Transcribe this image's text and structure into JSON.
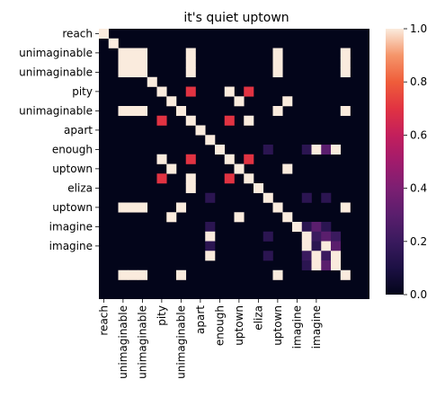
{
  "chart_data": {
    "type": "heatmap",
    "title": "it's quiet uptown",
    "xlabel": "",
    "ylabel": "",
    "tokens": [
      "reach",
      "unimaginable",
      "unimaginable",
      "unimaginable",
      "unimaginable",
      "unimaginable",
      "pity",
      "pity",
      "unimaginable",
      "unimaginable",
      "unimaginable",
      "apart",
      "apart",
      "enough",
      "enough",
      "uptown",
      "uptown",
      "uptown",
      "eliza",
      "eliza",
      "uptown",
      "uptown",
      "imagine",
      "imagine",
      "imagine",
      "imagine",
      "imagine",
      "imagine"
    ],
    "y_tick_labels": [
      "reach",
      "unimaginable",
      "unimaginable",
      "pity",
      "unimaginable",
      "apart",
      "enough",
      "uptown",
      "eliza",
      "uptown",
      "imagine",
      "imagine"
    ],
    "x_tick_labels": [
      "reach",
      "unimaginable",
      "unimaginable",
      "pity",
      "unimaginable",
      "apart",
      "enough",
      "uptown",
      "eliza",
      "uptown",
      "imagine",
      "imagine"
    ],
    "cells": [
      [
        0,
        0,
        1.0
      ],
      [
        1,
        1,
        1.0
      ],
      [
        2,
        2,
        1.0
      ],
      [
        2,
        3,
        1.0
      ],
      [
        2,
        4,
        1.0
      ],
      [
        2,
        9,
        1.0
      ],
      [
        2,
        18,
        1.0
      ],
      [
        2,
        25,
        1.0
      ],
      [
        3,
        2,
        1.0
      ],
      [
        3,
        3,
        1.0
      ],
      [
        3,
        4,
        1.0
      ],
      [
        3,
        9,
        1.0
      ],
      [
        3,
        18,
        1.0
      ],
      [
        3,
        25,
        1.0
      ],
      [
        4,
        2,
        1.0
      ],
      [
        4,
        3,
        1.0
      ],
      [
        4,
        4,
        1.0
      ],
      [
        4,
        9,
        1.0
      ],
      [
        4,
        18,
        1.0
      ],
      [
        4,
        25,
        1.0
      ],
      [
        5,
        5,
        1.0
      ],
      [
        6,
        6,
        1.0
      ],
      [
        6,
        9,
        0.7
      ],
      [
        6,
        13,
        1.0
      ],
      [
        6,
        15,
        0.7
      ],
      [
        7,
        7,
        1.0
      ],
      [
        7,
        14,
        1.0
      ],
      [
        7,
        19,
        1.0
      ],
      [
        8,
        2,
        1.0
      ],
      [
        8,
        3,
        1.0
      ],
      [
        8,
        4,
        1.0
      ],
      [
        8,
        8,
        1.0
      ],
      [
        8,
        18,
        1.0
      ],
      [
        8,
        25,
        1.0
      ],
      [
        9,
        6,
        0.7
      ],
      [
        9,
        9,
        1.0
      ],
      [
        9,
        13,
        0.7
      ],
      [
        9,
        15,
        1.0
      ],
      [
        10,
        10,
        1.0
      ],
      [
        11,
        11,
        1.0
      ],
      [
        12,
        12,
        1.0
      ],
      [
        12,
        17,
        0.15
      ],
      [
        12,
        21,
        0.15
      ],
      [
        12,
        22,
        1.0
      ],
      [
        12,
        23,
        0.3
      ],
      [
        12,
        24,
        1.0
      ],
      [
        13,
        6,
        1.0
      ],
      [
        13,
        9,
        0.7
      ],
      [
        13,
        13,
        1.0
      ],
      [
        13,
        15,
        0.7
      ],
      [
        14,
        7,
        1.0
      ],
      [
        14,
        14,
        1.0
      ],
      [
        14,
        19,
        1.0
      ],
      [
        15,
        6,
        0.7
      ],
      [
        15,
        9,
        1.0
      ],
      [
        15,
        13,
        0.7
      ],
      [
        15,
        15,
        1.0
      ],
      [
        16,
        9,
        1.0
      ],
      [
        16,
        16,
        1.0
      ],
      [
        17,
        11,
        0.15
      ],
      [
        17,
        17,
        1.0
      ],
      [
        17,
        21,
        0.15
      ],
      [
        17,
        23,
        0.15
      ],
      [
        18,
        2,
        1.0
      ],
      [
        18,
        3,
        1.0
      ],
      [
        18,
        4,
        1.0
      ],
      [
        18,
        8,
        1.0
      ],
      [
        18,
        18,
        1.0
      ],
      [
        18,
        25,
        1.0
      ],
      [
        19,
        7,
        1.0
      ],
      [
        19,
        14,
        1.0
      ],
      [
        19,
        19,
        1.0
      ],
      [
        20,
        11,
        0.15
      ],
      [
        20,
        20,
        1.0
      ],
      [
        20,
        21,
        0.15
      ],
      [
        20,
        22,
        0.3
      ],
      [
        20,
        23,
        0.15
      ],
      [
        21,
        11,
        1.0
      ],
      [
        21,
        17,
        0.15
      ],
      [
        21,
        21,
        1.0
      ],
      [
        21,
        22,
        0.2
      ],
      [
        21,
        23,
        0.3
      ],
      [
        21,
        24,
        0.2
      ],
      [
        22,
        11,
        0.15
      ],
      [
        22,
        21,
        1.0
      ],
      [
        22,
        22,
        0.15
      ],
      [
        22,
        23,
        1.0
      ],
      [
        22,
        24,
        0.3
      ],
      [
        23,
        11,
        1.0
      ],
      [
        23,
        17,
        0.15
      ],
      [
        23,
        21,
        0.2
      ],
      [
        23,
        22,
        1.0
      ],
      [
        23,
        23,
        0.2
      ],
      [
        23,
        24,
        1.0
      ],
      [
        24,
        21,
        0.15
      ],
      [
        24,
        22,
        1.0
      ],
      [
        24,
        23,
        0.3
      ],
      [
        24,
        24,
        1.0
      ],
      [
        25,
        2,
        1.0
      ],
      [
        25,
        3,
        1.0
      ],
      [
        25,
        4,
        1.0
      ],
      [
        25,
        8,
        1.0
      ],
      [
        25,
        18,
        1.0
      ],
      [
        25,
        25,
        1.0
      ]
    ],
    "vmin": 0.0,
    "vmax": 1.0,
    "colormap": "rocket",
    "colorbar_ticks": [
      0.0,
      0.2,
      0.4,
      0.6,
      0.8,
      1.0
    ],
    "colorbar_tick_labels": [
      "0.0",
      "0.2",
      "0.4",
      "0.6",
      "0.8",
      "1.0"
    ],
    "grid": false,
    "legend": "colorbar-right"
  }
}
